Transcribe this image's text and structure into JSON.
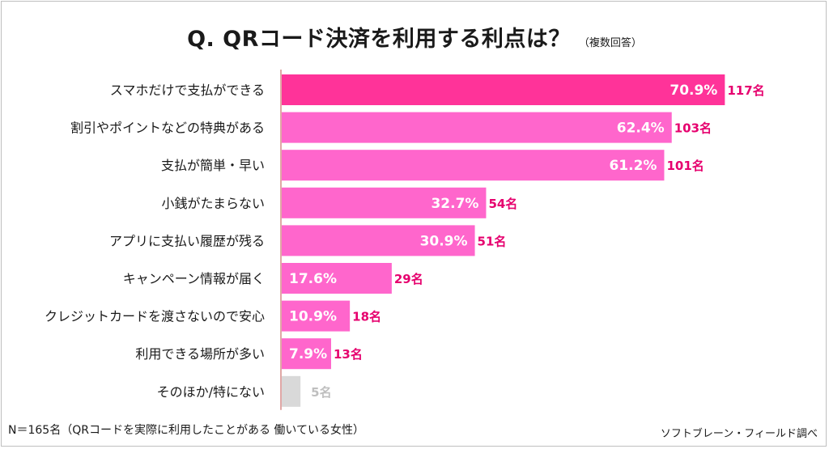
{
  "chart_data": {
    "type": "bar",
    "orientation": "horizontal",
    "title": "Q.  QRコード決済を利用する利点は？",
    "subtitle": "（複数回答）",
    "categories": [
      "スマホだけで支払ができる",
      "割引やポイントなどの特典がある",
      "支払が簡単・早い",
      "小銭がたまらない",
      "アプリに支払い履歴が残る",
      "キャンペーン情報が届く",
      "クレジットカードを渡さないので安心",
      "利用できる場所が多い",
      "そのほか/特にない"
    ],
    "values": [
      70.9,
      62.4,
      61.2,
      32.7,
      30.9,
      17.6,
      10.9,
      7.9,
      3.0
    ],
    "value_labels": [
      "70.9%",
      "62.4%",
      "61.2%",
      "32.7%",
      "30.9%",
      "17.6%",
      "10.9%",
      "7.9%",
      ""
    ],
    "counts": [
      "117名",
      "103名",
      "101名",
      "54名",
      "51名",
      "29名",
      "18名",
      "13名",
      "5名"
    ],
    "xlim": [
      0,
      100
    ],
    "colors": {
      "top": "#ff3399",
      "bar": "#ff66cc",
      "other": "#d9d9d9",
      "count_text": "#e6006e",
      "count_text_other": "#bfbfbf"
    }
  },
  "footnote": "N＝165名（QRコードを実際に利用したことがある 働いている女性）",
  "credit": "ソフトブレーン・フィールド調べ"
}
